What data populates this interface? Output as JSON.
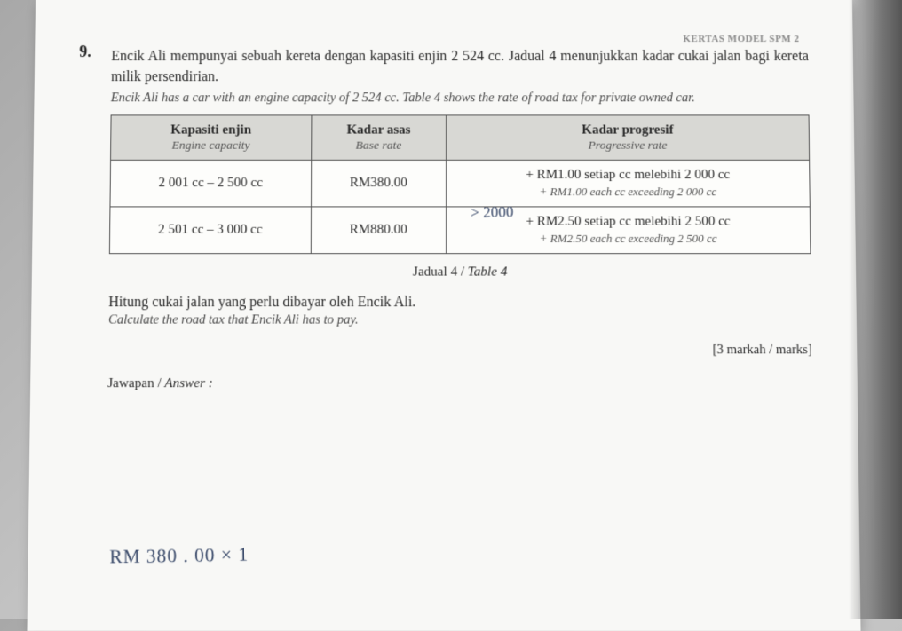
{
  "header": {
    "right_label": "KERTAS MODEL SPM 2"
  },
  "question": {
    "number": "9.",
    "line1_ms": "Encik Ali mempunyai sebuah kereta dengan kapasiti enjin 2 524 cc. Jadual 4 menunjukkan kadar cukai jalan bagi kereta milik persendirian.",
    "line1_en": "Encik Ali has a car with an engine capacity of 2 524 cc. Table 4 shows the rate of road tax for private owned car.",
    "instruction_ms": "Hitung cukai jalan yang perlu dibayar oleh Encik Ali.",
    "instruction_en": "Calculate the road tax that Encik Ali has to pay.",
    "marks": "[3 markah / marks]",
    "answer_label_ms": "Jawapan / ",
    "answer_label_en": "Answer :"
  },
  "table": {
    "caption_ms": "Jadual 4 / ",
    "caption_en": "Table 4",
    "headers": [
      {
        "ms": "Kapasiti enjin",
        "en": "Engine capacity"
      },
      {
        "ms": "Kadar asas",
        "en": "Base rate"
      },
      {
        "ms": "Kadar progresif",
        "en": "Progressive rate"
      }
    ],
    "rows": [
      {
        "capacity": "2 001 cc – 2 500 cc",
        "base": "RM380.00",
        "prog_ms": "+ RM1.00 setiap cc melebihi 2 000 cc",
        "prog_en": "+ RM1.00 each cc exceeding 2 000 cc"
      },
      {
        "capacity": "2 501 cc – 3 000 cc",
        "base": "RM880.00",
        "prog_ms": "+ RM2.50 setiap cc melebihi 2 500 cc",
        "prog_en": "+ RM2.50 each cc exceeding 2 500 cc"
      }
    ]
  },
  "handwriting": {
    "note1": "> 2000",
    "note2": "RM 380 . 00 × 1"
  },
  "style": {
    "paper_bg": "#f8f8f6",
    "header_bg": "#d8d8d4",
    "border_color": "#555555",
    "text_color": "#2a2a2a",
    "italic_color": "#4a4a4a",
    "handwriting_color": "#3a4a6a",
    "body_fontsize": 16,
    "italic_fontsize": 14.5,
    "table_fontsize": 15
  }
}
